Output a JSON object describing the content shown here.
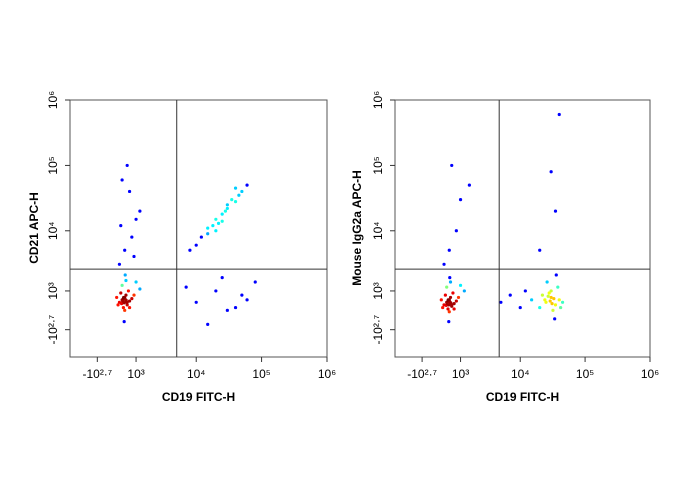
{
  "chart_data": [
    {
      "type": "scatter",
      "xlabel": "CD19 FITC-H",
      "ylabel": "CD21 APC-H",
      "xlim": [
        -2000,
        1000000
      ],
      "ylim": [
        -2000,
        1000000
      ],
      "xticks": [
        {
          "value": -501.2,
          "label": "-10²·⁷"
        },
        {
          "value": 1000,
          "label": "10³"
        },
        {
          "value": 10000,
          "label": "10⁴"
        },
        {
          "value": 100000,
          "label": "10⁵"
        },
        {
          "value": 1000000,
          "label": "10⁶"
        }
      ],
      "yticks": [
        {
          "value": -501.2,
          "label": "-10²·⁷"
        },
        {
          "value": 1000,
          "label": "10³"
        },
        {
          "value": 10000,
          "label": "10⁴"
        },
        {
          "value": 100000,
          "label": "10⁵"
        },
        {
          "value": 1000000,
          "label": "10⁶"
        }
      ],
      "quadrant_gate": {
        "x": 5000,
        "y": 2500
      },
      "color": "#0000ff",
      "x": [
        300,
        400,
        500,
        600,
        450,
        550,
        350,
        700,
        800,
        250,
        500,
        650,
        400,
        550,
        900,
        1200,
        200,
        480,
        520,
        600,
        380,
        700,
        450,
        1000,
        420,
        520,
        480,
        560,
        460,
        540,
        10000,
        12000,
        15000,
        18000,
        20000,
        22000,
        25000,
        28000,
        30000,
        35000,
        40000,
        45000,
        50000,
        60000,
        15000,
        25000,
        30000,
        8000,
        20000,
        40000,
        10000,
        20000,
        30000,
        50000,
        80000,
        15000,
        40000,
        7000,
        25000,
        60000,
        300,
        500,
        800,
        1200,
        400,
        600,
        1000,
        700,
        350,
        900
      ],
      "y": [
        500,
        600,
        700,
        400,
        300,
        800,
        900,
        550,
        650,
        400,
        200,
        1000,
        1300,
        1600,
        800,
        1100,
        700,
        -200,
        2000,
        500,
        450,
        300,
        650,
        1500,
        550,
        620,
        480,
        580,
        700,
        520,
        6000,
        8000,
        9000,
        12000,
        15000,
        13000,
        18000,
        20000,
        25000,
        30000,
        28000,
        35000,
        40000,
        50000,
        11000,
        14000,
        22000,
        5000,
        10000,
        45000,
        500,
        1000,
        200,
        800,
        1500,
        -300,
        300,
        1200,
        1800,
        600,
        3000,
        5000,
        8000,
        20000,
        60000,
        100000,
        15000,
        40000,
        12000,
        4000
      ]
    },
    {
      "type": "scatter",
      "xlabel": "CD19 FITC-H",
      "ylabel": "Mouse IgG2a APC-H",
      "xlim": [
        -2000,
        1000000
      ],
      "ylim": [
        -2000,
        1000000
      ],
      "xticks": [
        {
          "value": -501.2,
          "label": "-10²·⁷"
        },
        {
          "value": 1000,
          "label": "10³"
        },
        {
          "value": 10000,
          "label": "10⁴"
        },
        {
          "value": 100000,
          "label": "10⁵"
        },
        {
          "value": 1000000,
          "label": "10⁶"
        }
      ],
      "yticks": [
        {
          "value": -501.2,
          "label": "-10²·⁷"
        },
        {
          "value": 1000,
          "label": "10³"
        },
        {
          "value": 10000,
          "label": "10⁴"
        },
        {
          "value": 100000,
          "label": "10⁵"
        },
        {
          "value": 1000000,
          "label": "10⁶"
        }
      ],
      "quadrant_gate": {
        "x": 4700,
        "y": 2500
      },
      "color": "#0000ff",
      "x": [
        300,
        400,
        500,
        600,
        450,
        550,
        350,
        700,
        800,
        250,
        500,
        650,
        400,
        550,
        900,
        1200,
        200,
        480,
        520,
        600,
        380,
        700,
        450,
        1000,
        420,
        520,
        480,
        560,
        460,
        540,
        20000,
        25000,
        30000,
        35000,
        40000,
        28000,
        32000,
        22000,
        38000,
        45000,
        26000,
        34000,
        30000,
        24000,
        42000,
        36000,
        29000,
        33000,
        31000,
        27000,
        5000,
        7000,
        10000,
        12000,
        15000,
        500,
        800,
        1000,
        600,
        20000,
        35000,
        40000,
        300,
        1500,
        30000
      ],
      "y": [
        400,
        500,
        600,
        350,
        250,
        700,
        800,
        450,
        550,
        300,
        150,
        900,
        1200,
        1500,
        700,
        1000,
        600,
        -200,
        1800,
        400,
        380,
        250,
        550,
        1300,
        450,
        520,
        400,
        480,
        600,
        430,
        300,
        500,
        700,
        400,
        600,
        900,
        200,
        800,
        1200,
        500,
        1500,
        -100,
        1000,
        600,
        300,
        2000,
        550,
        650,
        450,
        750,
        500,
        800,
        300,
        1000,
        600,
        5000,
        10000,
        30000,
        100000,
        5000,
        20000,
        600000,
        3000,
        50000,
        80000
      ]
    }
  ]
}
